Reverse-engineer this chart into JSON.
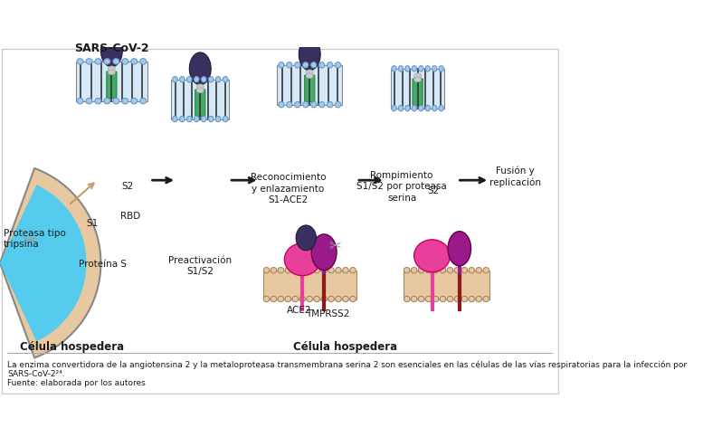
{
  "title": "SARS-CoV-2",
  "caption_line1": "La enzima convertidora de la angiotensina 2 y la metaloproteasa transmembrana serina 2 son esenciales en las células de las vías respiratorias para la infección por",
  "caption_line2": "SARS-CoV-2²⁴.",
  "caption_line3": "Fuente: elaborada por los autores",
  "label_proteasa": "Proteasa tipo\ntripsina",
  "label_s2": "S2",
  "label_s1": "S1",
  "label_rbd": "RBD",
  "label_proteina_s": "Proteína S",
  "label_preact": "Preactivación\nS1/S2",
  "label_reconoc": "Reconocimiento\ny enlazamiento\nS1-ACE2",
  "label_rompim": "Rompimiento\nS1/S2 por proteasa\nserina",
  "label_fusion": "Fusión y\nreplicación",
  "label_celula1": "Célula hospedera",
  "label_celula2": "Célula hospedera",
  "label_ace2": "ACE2",
  "label_tmprss2": "TMPRSS2",
  "color_membrane_virus": "#a8c8e8",
  "color_membrane_cell": "#e8c8a0",
  "color_s2_domain": "#4a9a6a",
  "color_s1_domain": "#3a3060",
  "color_rbd": "#3a3060",
  "color_ace2": "#e0408a",
  "color_tmprss2": "#8b1a6b",
  "color_cell_body": "#4ab8d8",
  "color_arrow": "#1a1a1a",
  "color_border": "#cccccc",
  "bg_color": "#ffffff"
}
